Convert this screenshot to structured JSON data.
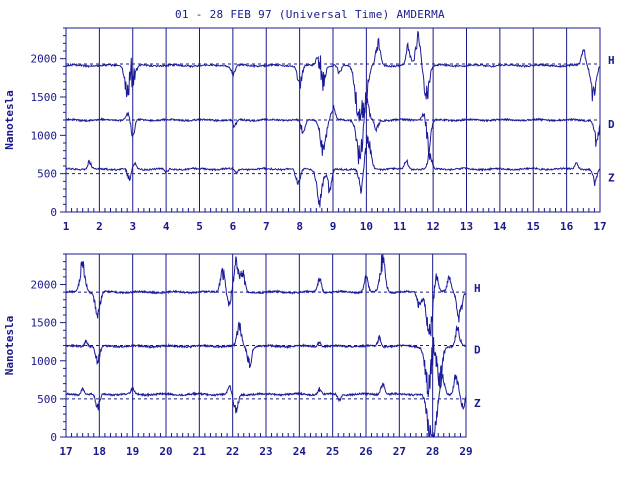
{
  "title": "01 - 28 FEB 97 (Universal Time) AMDERMA",
  "colors": {
    "ink": "#1a1a8c",
    "trace": "#1a1a99",
    "baseline": "#1a1a8c"
  },
  "chart_data": [
    {
      "type": "line",
      "panel": "top",
      "ylabel": "Nanotesla",
      "xlim": [
        1,
        17
      ],
      "ylim": [
        0,
        2400
      ],
      "yticks": [
        0,
        500,
        1000,
        1500,
        2000
      ],
      "xticks": [
        1,
        2,
        3,
        4,
        5,
        6,
        7,
        8,
        9,
        10,
        11,
        12,
        13,
        14,
        15,
        16,
        17
      ],
      "grid": "vertical-daily",
      "series": [
        {
          "name": "H",
          "baseline": 1930,
          "level": 1910,
          "disturbances": [
            {
              "x": 2.85,
              "amp": -450
            },
            {
              "x": 3.0,
              "amp": -380
            },
            {
              "x": 2.95,
              "amp": 380
            },
            {
              "x": 8.0,
              "amp": -280
            },
            {
              "x": 8.65,
              "amp": -500
            },
            {
              "x": 8.6,
              "amp": 420
            },
            {
              "x": 9.75,
              "amp": -650
            },
            {
              "x": 9.95,
              "amp": -550
            },
            {
              "x": 10.35,
              "amp": 300
            },
            {
              "x": 11.25,
              "amp": 250
            },
            {
              "x": 11.55,
              "amp": 380
            },
            {
              "x": 11.8,
              "amp": -420
            },
            {
              "x": 16.8,
              "amp": -420
            },
            {
              "x": 16.5,
              "amp": 200
            },
            {
              "x": 6.0,
              "amp": -150
            },
            {
              "x": 9.2,
              "amp": -120
            }
          ]
        },
        {
          "name": "D",
          "baseline": 1200,
          "level": 1200,
          "disturbances": [
            {
              "x": 3.0,
              "amp": -200
            },
            {
              "x": 2.85,
              "amp": 100
            },
            {
              "x": 8.1,
              "amp": -180
            },
            {
              "x": 8.7,
              "amp": -450
            },
            {
              "x": 9.0,
              "amp": 180
            },
            {
              "x": 9.8,
              "amp": -550
            },
            {
              "x": 10.0,
              "amp": 300
            },
            {
              "x": 10.3,
              "amp": -150
            },
            {
              "x": 11.85,
              "amp": -430
            },
            {
              "x": 11.75,
              "amp": 240
            },
            {
              "x": 16.9,
              "amp": -320
            },
            {
              "x": 6.05,
              "amp": -100
            }
          ]
        },
        {
          "name": "Z",
          "baseline": 500,
          "level": 560,
          "disturbances": [
            {
              "x": 1.7,
              "amp": 100
            },
            {
              "x": 2.9,
              "amp": -150
            },
            {
              "x": 3.05,
              "amp": 80
            },
            {
              "x": 7.95,
              "amp": -250
            },
            {
              "x": 8.6,
              "amp": -480
            },
            {
              "x": 8.9,
              "amp": -300
            },
            {
              "x": 9.85,
              "amp": -300
            },
            {
              "x": 10.05,
              "amp": 450
            },
            {
              "x": 11.2,
              "amp": 120
            },
            {
              "x": 11.9,
              "amp": 200
            },
            {
              "x": 16.85,
              "amp": -200
            },
            {
              "x": 16.3,
              "amp": 100
            },
            {
              "x": 4.0,
              "amp": -60
            },
            {
              "x": 6.1,
              "amp": -60
            }
          ]
        }
      ]
    },
    {
      "type": "line",
      "panel": "bottom",
      "ylabel": "Nanotesla",
      "xlim": [
        17,
        29
      ],
      "ylim": [
        0,
        2400
      ],
      "yticks": [
        0,
        500,
        1000,
        1500,
        2000
      ],
      "xticks": [
        17,
        18,
        19,
        20,
        21,
        22,
        23,
        24,
        25,
        26,
        27,
        28,
        29
      ],
      "grid": "vertical-daily",
      "series": [
        {
          "name": "H",
          "baseline": 1900,
          "level": 1900,
          "disturbances": [
            {
              "x": 17.5,
              "amp": 400
            },
            {
              "x": 17.95,
              "amp": -350
            },
            {
              "x": 21.7,
              "amp": 300
            },
            {
              "x": 21.9,
              "amp": -200
            },
            {
              "x": 22.1,
              "amp": 400
            },
            {
              "x": 22.3,
              "amp": 250
            },
            {
              "x": 24.6,
              "amp": 200
            },
            {
              "x": 26.0,
              "amp": 200
            },
            {
              "x": 26.5,
              "amp": 450
            },
            {
              "x": 27.6,
              "amp": -200
            },
            {
              "x": 27.9,
              "amp": -600
            },
            {
              "x": 28.1,
              "amp": 250
            },
            {
              "x": 28.8,
              "amp": -350
            },
            {
              "x": 28.5,
              "amp": 200
            }
          ]
        },
        {
          "name": "D",
          "baseline": 1200,
          "level": 1190,
          "disturbances": [
            {
              "x": 17.95,
              "amp": -230
            },
            {
              "x": 17.6,
              "amp": 80
            },
            {
              "x": 22.2,
              "amp": 280
            },
            {
              "x": 22.5,
              "amp": -250
            },
            {
              "x": 24.6,
              "amp": 60
            },
            {
              "x": 26.4,
              "amp": 120
            },
            {
              "x": 27.9,
              "amp": -750
            },
            {
              "x": 28.0,
              "amp": 400
            },
            {
              "x": 28.2,
              "amp": -500
            },
            {
              "x": 28.75,
              "amp": 250
            }
          ]
        },
        {
          "name": "Z",
          "baseline": 500,
          "level": 560,
          "disturbances": [
            {
              "x": 17.95,
              "amp": -200
            },
            {
              "x": 17.5,
              "amp": 80
            },
            {
              "x": 19.0,
              "amp": 80
            },
            {
              "x": 22.1,
              "amp": -250
            },
            {
              "x": 21.9,
              "amp": 100
            },
            {
              "x": 24.6,
              "amp": 80
            },
            {
              "x": 25.2,
              "amp": -80
            },
            {
              "x": 26.5,
              "amp": 150
            },
            {
              "x": 27.9,
              "amp": -500
            },
            {
              "x": 28.05,
              "amp": -450
            },
            {
              "x": 28.3,
              "amp": 250
            },
            {
              "x": 28.7,
              "amp": 250
            },
            {
              "x": 28.9,
              "amp": -200
            }
          ]
        }
      ]
    }
  ]
}
